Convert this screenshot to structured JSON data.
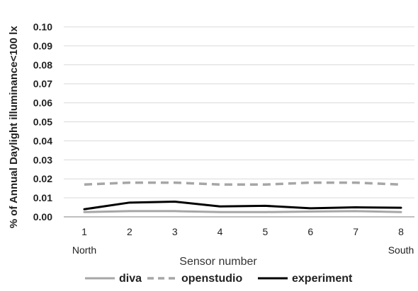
{
  "chart_data": {
    "type": "line",
    "title": "",
    "xlabel": "Sensor number",
    "ylabel": "% of Annual Daylight illuminance<100 lx",
    "x": [
      1,
      2,
      3,
      4,
      5,
      6,
      7,
      8
    ],
    "x_sub_labels": {
      "first": "North",
      "last": "South"
    },
    "y_ticks": [
      "0.00",
      "0.01",
      "0.02",
      "0.03",
      "0.04",
      "0.05",
      "0.06",
      "0.07",
      "0.08",
      "0.09",
      "0.10"
    ],
    "ylim": [
      0,
      0.1
    ],
    "grid": true,
    "legend_position": "bottom",
    "series": [
      {
        "name": "diva",
        "color": "#a6a6a6",
        "style": "solid",
        "values": [
          0.0025,
          0.003,
          0.003,
          0.0025,
          0.0025,
          0.0028,
          0.003,
          0.0025
        ]
      },
      {
        "name": "openstudio",
        "color": "#a6a6a6",
        "style": "dashed",
        "values": [
          0.017,
          0.018,
          0.018,
          0.017,
          0.017,
          0.018,
          0.018,
          0.017
        ]
      },
      {
        "name": "experiment",
        "color": "#000000",
        "style": "solid",
        "values": [
          0.004,
          0.0075,
          0.008,
          0.0055,
          0.0058,
          0.0045,
          0.005,
          0.0048
        ]
      }
    ]
  }
}
